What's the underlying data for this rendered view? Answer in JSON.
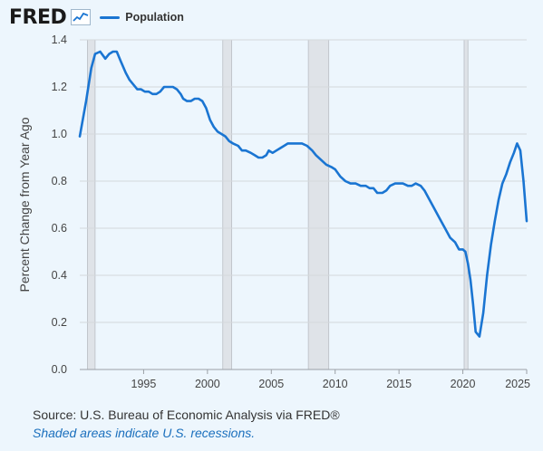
{
  "logo": "FRED",
  "source_text": "Source: U.S. Bureau of Economic Analysis via FRED®",
  "note_text": "Shaded areas indicate U.S. recessions.",
  "colors": {
    "series": "#1a75d2",
    "recession": "#dfe3e8",
    "grid": "#d4d8dc",
    "background": "#edf6fd"
  },
  "icons": [
    "trend-line-icon"
  ],
  "chart_data": {
    "type": "line",
    "title": "",
    "xlabel": "",
    "ylabel": "Percent Change from Year Ago",
    "ylim": [
      0,
      1.4
    ],
    "xlim": [
      1990,
      2025
    ],
    "y_ticks": [
      "0.0",
      "0.2",
      "0.4",
      "0.6",
      "0.8",
      "1.0",
      "1.2",
      "1.4"
    ],
    "x_ticks": [
      "1995",
      "2000",
      "2005",
      "2010",
      "2015",
      "2020",
      "2025"
    ],
    "grid": true,
    "legend_position": "top-left",
    "recessions": [
      [
        1990.6,
        1991.2
      ],
      [
        2001.2,
        2001.9
      ],
      [
        2007.9,
        2009.5
      ],
      [
        2020.1,
        2020.4
      ]
    ],
    "series": [
      {
        "name": "Population",
        "color": "#1a75d2",
        "points": [
          [
            1990.0,
            0.99
          ],
          [
            1990.5,
            1.14
          ],
          [
            1990.9,
            1.28
          ],
          [
            1991.2,
            1.34
          ],
          [
            1991.6,
            1.35
          ],
          [
            1992.0,
            1.32
          ],
          [
            1992.3,
            1.34
          ],
          [
            1992.6,
            1.35
          ],
          [
            1992.9,
            1.35
          ],
          [
            1993.2,
            1.31
          ],
          [
            1993.6,
            1.26
          ],
          [
            1993.9,
            1.23
          ],
          [
            1994.2,
            1.21
          ],
          [
            1994.5,
            1.19
          ],
          [
            1994.8,
            1.19
          ],
          [
            1995.1,
            1.18
          ],
          [
            1995.4,
            1.18
          ],
          [
            1995.7,
            1.17
          ],
          [
            1996.0,
            1.17
          ],
          [
            1996.3,
            1.18
          ],
          [
            1996.6,
            1.2
          ],
          [
            1997.0,
            1.2
          ],
          [
            1997.3,
            1.2
          ],
          [
            1997.6,
            1.19
          ],
          [
            1997.9,
            1.17
          ],
          [
            1998.1,
            1.15
          ],
          [
            1998.4,
            1.14
          ],
          [
            1998.7,
            1.14
          ],
          [
            1999.0,
            1.15
          ],
          [
            1999.3,
            1.15
          ],
          [
            1999.6,
            1.14
          ],
          [
            1999.9,
            1.11
          ],
          [
            2000.2,
            1.06
          ],
          [
            2000.5,
            1.03
          ],
          [
            2000.8,
            1.01
          ],
          [
            2001.1,
            1.0
          ],
          [
            2001.4,
            0.99
          ],
          [
            2001.7,
            0.97
          ],
          [
            2002.0,
            0.96
          ],
          [
            2002.4,
            0.95
          ],
          [
            2002.7,
            0.93
          ],
          [
            2003.0,
            0.93
          ],
          [
            2003.4,
            0.92
          ],
          [
            2003.7,
            0.91
          ],
          [
            2004.0,
            0.9
          ],
          [
            2004.3,
            0.9
          ],
          [
            2004.6,
            0.91
          ],
          [
            2004.8,
            0.93
          ],
          [
            2005.1,
            0.92
          ],
          [
            2005.4,
            0.93
          ],
          [
            2005.7,
            0.94
          ],
          [
            2006.0,
            0.95
          ],
          [
            2006.3,
            0.96
          ],
          [
            2006.7,
            0.96
          ],
          [
            2007.0,
            0.96
          ],
          [
            2007.4,
            0.96
          ],
          [
            2007.8,
            0.95
          ],
          [
            2008.2,
            0.93
          ],
          [
            2008.5,
            0.91
          ],
          [
            2008.9,
            0.89
          ],
          [
            2009.3,
            0.87
          ],
          [
            2009.7,
            0.86
          ],
          [
            2010.0,
            0.85
          ],
          [
            2010.4,
            0.82
          ],
          [
            2010.8,
            0.8
          ],
          [
            2011.2,
            0.79
          ],
          [
            2011.6,
            0.79
          ],
          [
            2012.0,
            0.78
          ],
          [
            2012.4,
            0.78
          ],
          [
            2012.7,
            0.77
          ],
          [
            2013.0,
            0.77
          ],
          [
            2013.3,
            0.75
          ],
          [
            2013.7,
            0.75
          ],
          [
            2014.0,
            0.76
          ],
          [
            2014.3,
            0.78
          ],
          [
            2014.7,
            0.79
          ],
          [
            2015.0,
            0.79
          ],
          [
            2015.3,
            0.79
          ],
          [
            2015.7,
            0.78
          ],
          [
            2016.0,
            0.78
          ],
          [
            2016.3,
            0.79
          ],
          [
            2016.7,
            0.78
          ],
          [
            2017.0,
            0.76
          ],
          [
            2017.4,
            0.72
          ],
          [
            2017.8,
            0.68
          ],
          [
            2018.2,
            0.64
          ],
          [
            2018.6,
            0.6
          ],
          [
            2019.0,
            0.56
          ],
          [
            2019.4,
            0.54
          ],
          [
            2019.7,
            0.51
          ],
          [
            2020.0,
            0.51
          ],
          [
            2020.2,
            0.5
          ],
          [
            2020.4,
            0.45
          ],
          [
            2020.6,
            0.38
          ],
          [
            2020.8,
            0.28
          ],
          [
            2021.0,
            0.16
          ],
          [
            2021.3,
            0.14
          ],
          [
            2021.6,
            0.24
          ],
          [
            2021.9,
            0.4
          ],
          [
            2022.2,
            0.53
          ],
          [
            2022.5,
            0.63
          ],
          [
            2022.8,
            0.72
          ],
          [
            2023.1,
            0.79
          ],
          [
            2023.4,
            0.83
          ],
          [
            2023.7,
            0.88
          ],
          [
            2024.0,
            0.92
          ],
          [
            2024.25,
            0.96
          ],
          [
            2024.5,
            0.93
          ],
          [
            2024.75,
            0.8
          ],
          [
            2025.0,
            0.63
          ]
        ]
      }
    ]
  }
}
